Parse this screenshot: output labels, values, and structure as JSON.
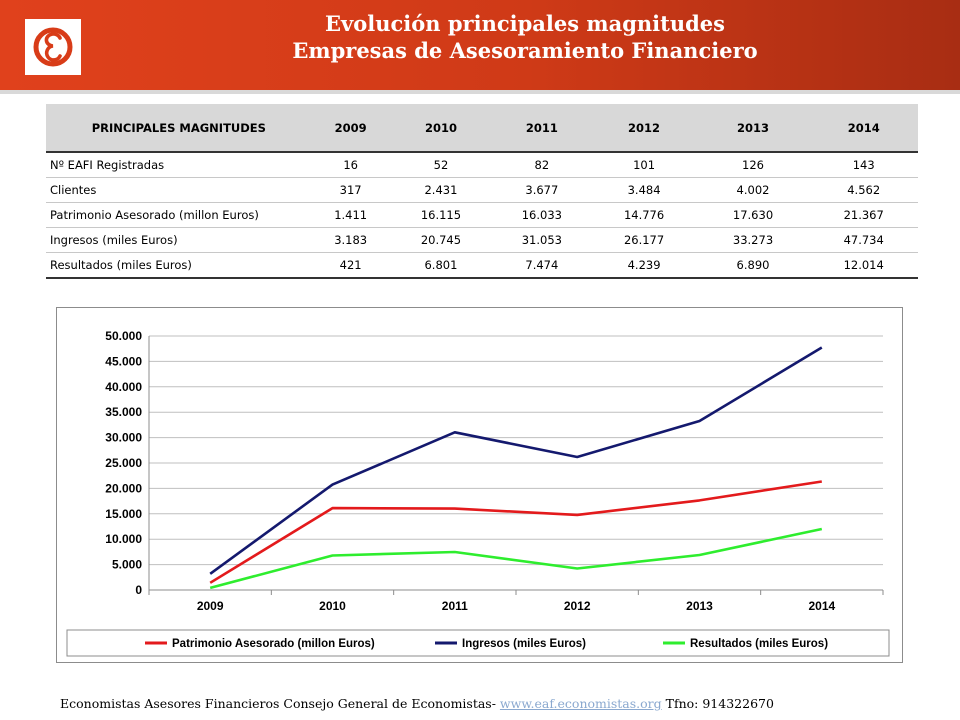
{
  "header": {
    "title_line1": "Evolución principales magnitudes",
    "title_line2": "Empresas de Asesoramiento Financiero",
    "brand_color": "#d83c18",
    "logo_icon": "eaf-logo-icon"
  },
  "table": {
    "headers": [
      "PRINCIPALES MAGNITUDES",
      "2009",
      "2010",
      "2011",
      "2012",
      "2013",
      "2014"
    ],
    "rows": [
      [
        "Nº EAFI Registradas",
        "16",
        "52",
        "82",
        "101",
        "126",
        "143"
      ],
      [
        "Clientes",
        "317",
        "2.431",
        "3.677",
        "3.484",
        "4.002",
        "4.562"
      ],
      [
        "Patrimonio Asesorado (millon Euros)",
        "1.411",
        "16.115",
        "16.033",
        "14.776",
        "17.630",
        "21.367"
      ],
      [
        "Ingresos (miles Euros)",
        "3.183",
        "20.745",
        "31.053",
        "26.177",
        "33.273",
        "47.734"
      ],
      [
        "Resultados (miles Euros)",
        "421",
        "6.801",
        "7.474",
        "4.239",
        "6.890",
        "12.014"
      ]
    ]
  },
  "chart_data": {
    "type": "line",
    "categories": [
      "2009",
      "2010",
      "2011",
      "2012",
      "2013",
      "2014"
    ],
    "series": [
      {
        "name": "Patrimonio Asesorado (millon Euros)",
        "color": "#e31a1c",
        "values": [
          1411,
          16115,
          16033,
          14776,
          17630,
          21367
        ]
      },
      {
        "name": "Ingresos (miles Euros)",
        "color": "#14196e",
        "values": [
          3183,
          20745,
          31053,
          26177,
          33273,
          47734
        ]
      },
      {
        "name": "Resultados (miles Euros)",
        "color": "#2eed2e",
        "values": [
          421,
          6801,
          7474,
          4239,
          6890,
          12014
        ]
      }
    ],
    "ylim": [
      0,
      50000
    ],
    "yticks": [
      0,
      5000,
      10000,
      15000,
      20000,
      25000,
      30000,
      35000,
      40000,
      45000,
      50000
    ],
    "ytick_labels": [
      "0",
      "5.000",
      "10.000",
      "15.000",
      "20.000",
      "25.000",
      "30.000",
      "35.000",
      "40.000",
      "45.000",
      "50.000"
    ],
    "grid": "horizontal",
    "legend_position": "bottom",
    "title": "",
    "xlabel": "",
    "ylabel": ""
  },
  "footer": {
    "text_before": "Economistas Asesores Financieros Consejo General de Economistas- ",
    "link_text": "www.eaf.economistas.org",
    "text_after": " Tfno: 914322670"
  }
}
